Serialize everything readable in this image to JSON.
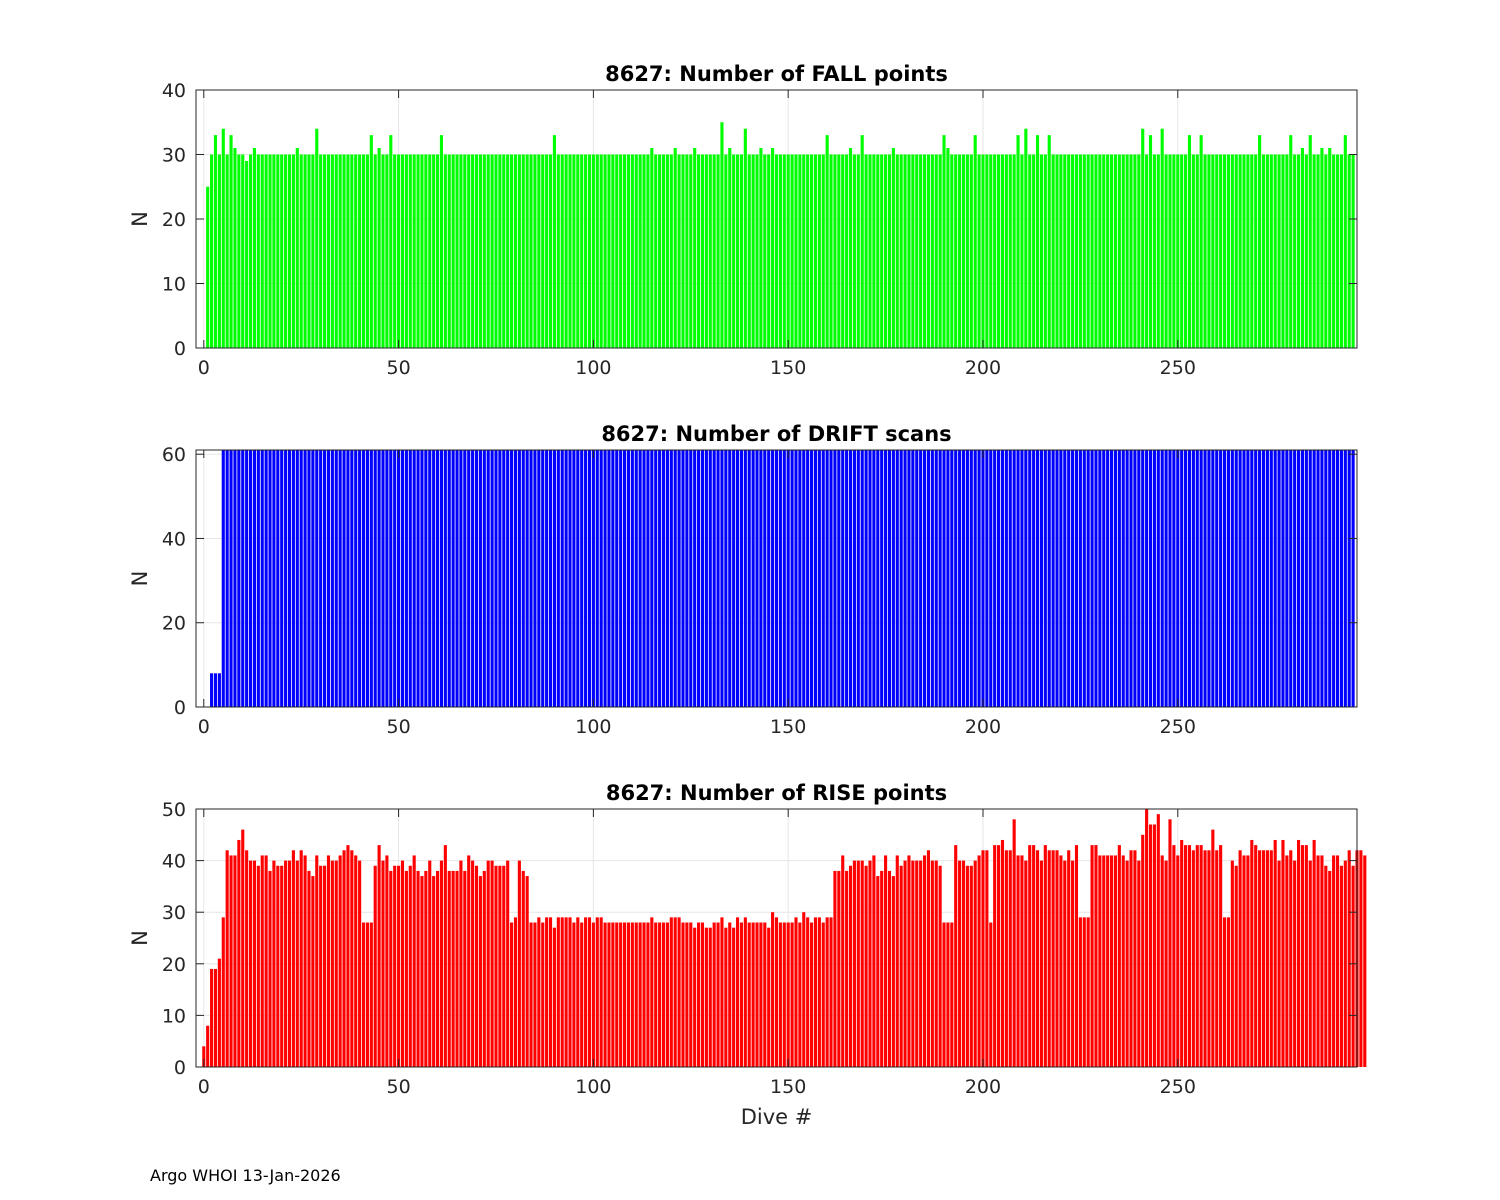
{
  "footer": "Argo WHOI 13-Jan-2026",
  "chart_data": [
    {
      "type": "bar",
      "title": "8627: Number of FALL points",
      "xlabel": "",
      "ylabel": "N",
      "color": "#00ff00",
      "xlim": [
        -2,
        296
      ],
      "ylim": [
        0,
        40
      ],
      "xticks": [
        0,
        50,
        100,
        150,
        200,
        250
      ],
      "yticks": [
        0,
        10,
        20,
        30,
        40
      ],
      "grid": true,
      "base_value": 30,
      "x_start": 1,
      "x_end": 295,
      "exceptions": {
        "1": 25,
        "3": 33,
        "5": 34,
        "7": 33,
        "8": 31,
        "11": 29,
        "13": 31,
        "24": 31,
        "29": 34,
        "43": 33,
        "45": 31,
        "48": 33,
        "61": 33,
        "90": 33,
        "115": 31,
        "121": 31,
        "126": 31,
        "133": 35,
        "135": 31,
        "139": 34,
        "143": 31,
        "146": 31,
        "160": 33,
        "166": 31,
        "169": 33,
        "177": 31,
        "190": 33,
        "191": 31,
        "198": 33,
        "209": 33,
        "211": 34,
        "214": 33,
        "217": 33,
        "241": 34,
        "243": 33,
        "246": 34,
        "253": 33,
        "256": 33,
        "271": 33,
        "279": 33,
        "282": 31,
        "284": 33,
        "287": 31,
        "289": 31,
        "293": 33
      }
    },
    {
      "type": "bar",
      "title": "8627: Number of DRIFT scans",
      "xlabel": "",
      "ylabel": "N",
      "color": "#0000ff",
      "xlim": [
        -2,
        296
      ],
      "ylim": [
        0,
        61
      ],
      "xticks": [
        0,
        50,
        100,
        150,
        200,
        250
      ],
      "yticks": [
        0,
        20,
        40,
        60
      ],
      "grid": true,
      "base_value": 61,
      "x_start": 2,
      "x_end": 295,
      "exceptions": {
        "2": 8,
        "3": 8,
        "4": 8
      }
    },
    {
      "type": "bar",
      "title": "8627: Number of RISE points",
      "xlabel": "Dive #",
      "ylabel": "N",
      "color": "#ff0000",
      "xlim": [
        -2,
        296
      ],
      "ylim": [
        0,
        50
      ],
      "xticks": [
        0,
        50,
        100,
        150,
        200,
        250
      ],
      "yticks": [
        0,
        10,
        20,
        30,
        40,
        50
      ],
      "grid": true,
      "x_start": 0,
      "values": [
        4,
        8,
        19,
        19,
        21,
        29,
        42,
        41,
        41,
        44,
        46,
        42,
        40,
        40,
        39,
        41,
        41,
        38,
        40,
        39,
        39,
        40,
        40,
        42,
        40,
        42,
        41,
        38,
        37,
        41,
        39,
        39,
        41,
        40,
        40,
        41,
        42,
        43,
        42,
        41,
        40,
        28,
        28,
        28,
        39,
        43,
        40,
        41,
        38,
        39,
        39,
        40,
        38,
        39,
        41,
        38,
        37,
        38,
        40,
        37,
        38,
        40,
        43,
        38,
        38,
        38,
        40,
        38,
        41,
        40,
        39,
        37,
        38,
        40,
        40,
        39,
        39,
        39,
        40,
        28,
        29,
        40,
        38,
        37,
        28,
        28,
        29,
        28,
        29,
        29,
        27,
        29,
        29,
        29,
        29,
        28,
        29,
        28,
        29,
        29,
        28,
        29,
        29,
        28,
        28,
        28,
        28,
        28,
        28,
        28,
        28,
        28,
        28,
        28,
        28,
        29,
        28,
        28,
        28,
        28,
        29,
        29,
        29,
        28,
        28,
        28,
        27,
        28,
        28,
        27,
        27,
        28,
        28,
        29,
        27,
        28,
        27,
        29,
        28,
        29,
        28,
        28,
        28,
        28,
        28,
        27,
        30,
        29,
        28,
        28,
        28,
        28,
        29,
        28,
        30,
        29,
        28,
        29,
        29,
        28,
        29,
        29,
        38,
        38,
        41,
        38,
        39,
        40,
        40,
        40,
        39,
        40,
        41,
        37,
        38,
        41,
        38,
        37,
        41,
        39,
        40,
        41,
        40,
        40,
        40,
        41,
        42,
        40,
        40,
        39,
        28,
        28,
        28,
        43,
        40,
        40,
        39,
        39,
        40,
        41,
        42,
        42,
        28,
        43,
        43,
        44,
        42,
        42,
        48,
        41,
        41,
        40,
        43,
        43,
        42,
        40,
        43,
        42,
        42,
        42,
        41,
        40,
        42,
        40,
        43,
        29,
        29,
        29,
        43,
        43,
        41,
        41,
        41,
        41,
        41,
        43,
        41,
        40,
        42,
        42,
        40,
        45,
        50,
        47,
        47,
        49,
        41,
        40,
        48,
        43,
        41,
        44,
        43,
        43,
        42,
        43,
        43,
        42,
        42,
        46,
        42,
        43,
        29,
        29,
        40,
        39,
        42,
        41,
        41,
        44,
        43,
        42,
        42,
        42,
        42,
        44,
        40,
        44,
        41,
        42,
        40,
        44,
        43,
        43,
        40,
        44,
        41,
        41,
        39,
        38,
        41,
        41,
        39,
        40,
        42,
        39,
        42,
        42,
        41
      ]
    }
  ]
}
